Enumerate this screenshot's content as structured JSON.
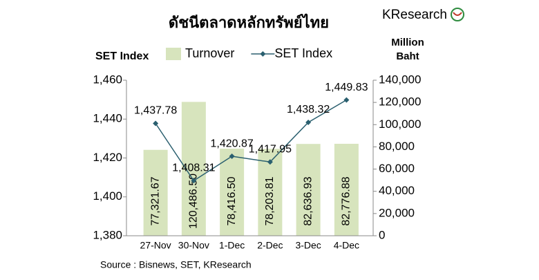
{
  "logo": "KResearch",
  "chart_data": {
    "type": "bar",
    "title": "ดัชนีตลาดหลักทรัพย์ไทย",
    "y_label": "SET Index",
    "y2_label": "Million Baht",
    "source": "Source : Bisnews, SET, KResearch",
    "categories": [
      "27-Nov",
      "30-Nov",
      "1-Dec",
      "2-Dec",
      "3-Dec",
      "4-Dec"
    ],
    "series": [
      {
        "name": "Turnover",
        "type": "bar",
        "axis": "y2",
        "color": "#d7e4bd",
        "values": [
          77321.67,
          120486.5,
          78416.5,
          78203.81,
          82636.93,
          82776.88
        ],
        "value_labels": [
          "77,321.67",
          "120,486.50",
          "78,416.50",
          "78,203.81",
          "82,636.93",
          "82,776.88"
        ]
      },
      {
        "name": "SET Index",
        "type": "line",
        "color": "#2a5f6f",
        "values": [
          1437.78,
          1408.31,
          1420.87,
          1417.95,
          1438.32,
          1449.83
        ],
        "value_labels": [
          "1,437.78",
          "1,408.31",
          "1,420.87",
          "1,417.95",
          "1,438.32",
          "1,449.83"
        ]
      }
    ],
    "ylim": [
      1380,
      1460
    ],
    "yticks": [
      {
        "value": 1380,
        "label": "1,380"
      },
      {
        "value": 1400,
        "label": "1,400"
      },
      {
        "value": 1420,
        "label": "1,420"
      },
      {
        "value": 1440,
        "label": "1,440"
      },
      {
        "value": 1460,
        "label": "1,460"
      }
    ],
    "y2lim": [
      0,
      140000
    ],
    "y2ticks": [
      0,
      {
        "value": 20000,
        "label": "20,000"
      },
      {
        "value": 40000,
        "label": "40,000"
      },
      {
        "value": 60000,
        "label": "60,000"
      },
      {
        "value": 80000,
        "label": "80,000"
      },
      {
        "value": 100000,
        "label": "100,000"
      },
      {
        "value": 120000,
        "label": "120,000"
      },
      {
        "value": 140000,
        "label": "140,000"
      }
    ],
    "legend": "top"
  }
}
